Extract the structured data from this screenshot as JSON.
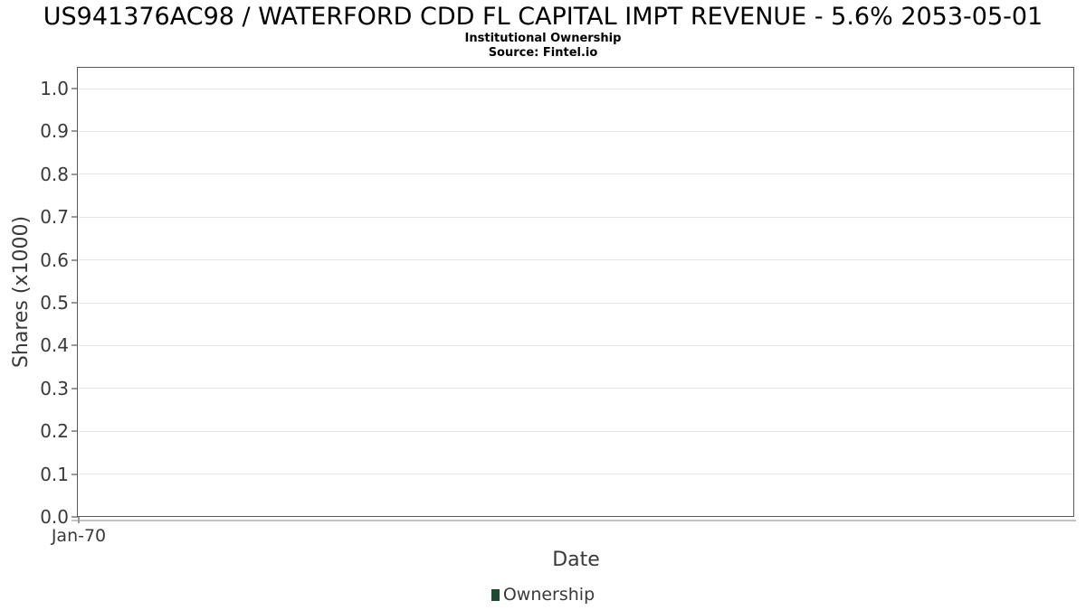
{
  "figure": {
    "title": "US941376AC98 / WATERFORD CDD FL CAPITAL IMPT REVENUE - 5.6% 2053-05-01",
    "subtitle": "Institutional Ownership",
    "source": "Source: Fintel.io",
    "background": "#ffffff"
  },
  "axes": {
    "x_label": "Date",
    "y_label": "Shares (x1000)",
    "x_ticks": [
      "Jan-70"
    ],
    "y_ticks": [
      "0.0",
      "0.1",
      "0.2",
      "0.3",
      "0.4",
      "0.5",
      "0.6",
      "0.7",
      "0.8",
      "0.9",
      "1.0"
    ]
  },
  "legend": {
    "items": [
      {
        "label": "Ownership",
        "color": "#1d4b2d"
      }
    ]
  },
  "colors": {
    "plot_border": "#58585a",
    "gridline": "#e7e7e7",
    "tick_mark": "#999999",
    "axis_underline": "#c4c4c4",
    "label_text": "#3a3a3a",
    "title_text": "#000000",
    "series_green": "#1d4b2d"
  },
  "chart_data": {
    "type": "bar",
    "title": "US941376AC98 / WATERFORD CDD FL CAPITAL IMPT REVENUE - 5.6% 2053-05-01",
    "subtitle": "Institutional Ownership",
    "source": "Source: Fintel.io",
    "xlabel": "Date",
    "ylabel": "Shares (x1000)",
    "x_ticks": [
      "Jan-70"
    ],
    "y_ticks": [
      0.0,
      0.1,
      0.2,
      0.3,
      0.4,
      0.5,
      0.6,
      0.7,
      0.8,
      0.9,
      1.0
    ],
    "ylim": [
      0.0,
      1.05
    ],
    "grid": true,
    "legend_position": "bottom",
    "series": [
      {
        "name": "Ownership",
        "color": "#1d4b2d",
        "x": [],
        "values": []
      }
    ]
  }
}
